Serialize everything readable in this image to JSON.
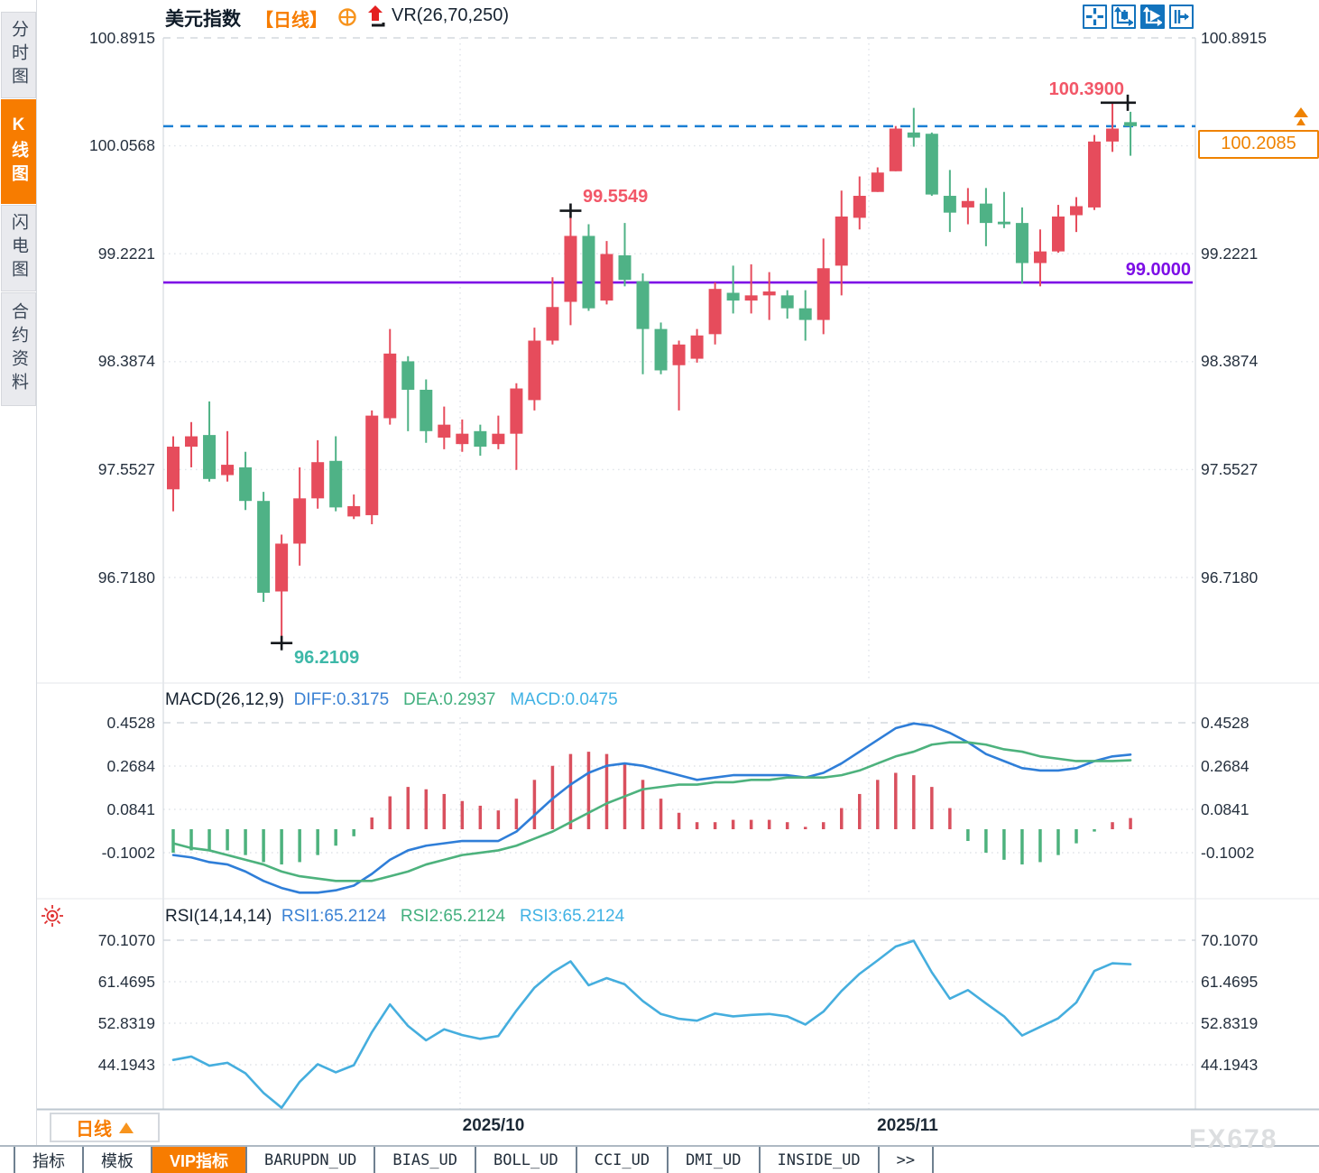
{
  "sidebar": {
    "items": [
      {
        "label": "分时图",
        "active": false
      },
      {
        "label": "K线图",
        "active": true
      },
      {
        "label": "闪电图",
        "active": false
      },
      {
        "label": "合约资料",
        "active": false
      }
    ]
  },
  "header": {
    "title": "美元指数",
    "period": "【日线】",
    "indicator": "VR(26,70,250)"
  },
  "toolbar": {
    "icons": [
      {
        "name": "crosshair-move-icon",
        "active": false
      },
      {
        "name": "axis-candle-icon",
        "active": false
      },
      {
        "name": "axis-play-icon",
        "active": true
      },
      {
        "name": "pan-right-icon",
        "active": false
      }
    ]
  },
  "main_chart": {
    "y_axis": [
      "100.8915",
      "100.0568",
      "99.2221",
      "98.3874",
      "97.5527",
      "96.7180"
    ],
    "annotations": {
      "high": "100.3900",
      "peak": "99.5549",
      "low": "96.2109",
      "support": "99.0000",
      "last_price": "100.2085"
    }
  },
  "macd_panel": {
    "title": "MACD(26,12,9)",
    "diff_label": "DIFF:0.3175",
    "dea_label": "DEA:0.2937",
    "macd_label": "MACD:0.0475",
    "y_axis": [
      "0.4528",
      "0.2684",
      "0.0841",
      "-0.1002"
    ]
  },
  "rsi_panel": {
    "title": "RSI(14,14,14)",
    "rsi1_label": "RSI1:65.2124",
    "rsi2_label": "RSI2:65.2124",
    "rsi3_label": "RSI3:65.2124",
    "y_axis": [
      "70.1070",
      "61.4695",
      "52.8319",
      "44.1943"
    ]
  },
  "x_axis": {
    "labels": [
      "2025/10",
      "2025/11"
    ]
  },
  "footer": {
    "period_label": "日线",
    "tabs": [
      {
        "label": "指标",
        "active": false
      },
      {
        "label": "模板",
        "active": false
      },
      {
        "label": "VIP指标",
        "active": true
      },
      {
        "label": "BARUPDN_UD",
        "active": false
      },
      {
        "label": "BIAS_UD",
        "active": false
      },
      {
        "label": "BOLL_UD",
        "active": false
      },
      {
        "label": "CCI_UD",
        "active": false
      },
      {
        "label": "DMI_UD",
        "active": false
      },
      {
        "label": "INSIDE_UD",
        "active": false
      },
      {
        "label": ">>",
        "active": false
      }
    ]
  },
  "watermark": "FX678",
  "colors": {
    "up": "#e64c5c",
    "down": "#4fb286",
    "diff_line": "#2f7ed8",
    "dea_line": "#4db27d",
    "hist_up": "#d9505e",
    "hist_down": "#4db27d",
    "rsi_line": "#45aede",
    "last_price_line": "#1a7fd4",
    "support_line": "#7d0ee6",
    "accent": "#f77c00"
  },
  "chart_data": {
    "type": "candlestick+macd+rsi",
    "price": {
      "y_ticks": [
        100.8915,
        100.0568,
        99.2221,
        98.3874,
        97.5527,
        96.718
      ],
      "last_price": 100.2085,
      "support_level": 99.0,
      "high_mark": 100.39,
      "peak_mark_index": 22,
      "low_mark_index": 6,
      "candles_ohlc": [
        [
          97.4,
          97.81,
          97.23,
          97.73
        ],
        [
          97.73,
          97.92,
          97.57,
          97.81
        ],
        [
          97.82,
          98.08,
          97.46,
          97.48
        ],
        [
          97.51,
          97.85,
          97.46,
          97.59
        ],
        [
          97.57,
          97.69,
          97.24,
          97.31
        ],
        [
          97.31,
          97.38,
          96.53,
          96.6
        ],
        [
          96.61,
          97.05,
          96.2109,
          96.98
        ],
        [
          96.98,
          97.57,
          96.81,
          97.33
        ],
        [
          97.33,
          97.78,
          97.25,
          97.61
        ],
        [
          97.62,
          97.81,
          97.23,
          97.26
        ],
        [
          97.19,
          97.36,
          97.17,
          97.27
        ],
        [
          97.2,
          98.01,
          97.13,
          97.97
        ],
        [
          97.95,
          98.64,
          97.9,
          98.45
        ],
        [
          98.39,
          98.43,
          97.85,
          98.17
        ],
        [
          98.17,
          98.25,
          97.76,
          97.85
        ],
        [
          97.8,
          98.04,
          97.71,
          97.9
        ],
        [
          97.75,
          97.94,
          97.69,
          97.83
        ],
        [
          97.85,
          97.9,
          97.66,
          97.73
        ],
        [
          97.75,
          97.97,
          97.71,
          97.83
        ],
        [
          97.83,
          98.22,
          97.55,
          98.18
        ],
        [
          98.09,
          98.65,
          98.01,
          98.55
        ],
        [
          98.55,
          99.04,
          98.52,
          98.81
        ],
        [
          98.85,
          99.5549,
          98.67,
          99.36
        ],
        [
          99.36,
          99.45,
          98.78,
          98.8
        ],
        [
          98.86,
          99.32,
          98.83,
          99.22
        ],
        [
          99.21,
          99.46,
          98.97,
          99.02
        ],
        [
          99.01,
          99.07,
          98.29,
          98.64
        ],
        [
          98.64,
          98.69,
          98.29,
          98.32
        ],
        [
          98.36,
          98.55,
          98.01,
          98.52
        ],
        [
          98.41,
          98.64,
          98.38,
          98.59
        ],
        [
          98.6,
          99.0,
          98.52,
          98.95
        ],
        [
          98.92,
          99.13,
          98.76,
          98.86
        ],
        [
          98.86,
          99.14,
          98.76,
          98.9
        ],
        [
          98.9,
          99.08,
          98.71,
          98.93
        ],
        [
          98.9,
          98.94,
          98.72,
          98.8
        ],
        [
          98.8,
          98.94,
          98.55,
          98.71
        ],
        [
          98.71,
          99.34,
          98.6,
          99.11
        ],
        [
          99.13,
          99.71,
          98.9,
          99.51
        ],
        [
          99.5,
          99.82,
          99.41,
          99.67
        ],
        [
          99.7,
          99.89,
          99.7,
          99.85
        ],
        [
          99.86,
          100.21,
          99.86,
          100.19
        ],
        [
          100.16,
          100.35,
          100.05,
          100.12
        ],
        [
          100.15,
          100.16,
          99.67,
          99.68
        ],
        [
          99.67,
          99.87,
          99.39,
          99.54
        ],
        [
          99.58,
          99.73,
          99.45,
          99.63
        ],
        [
          99.61,
          99.73,
          99.28,
          99.46
        ],
        [
          99.47,
          99.7,
          99.42,
          99.45
        ],
        [
          99.46,
          99.58,
          98.99,
          99.15
        ],
        [
          99.15,
          99.41,
          98.97,
          99.24
        ],
        [
          99.24,
          99.6,
          99.23,
          99.51
        ],
        [
          99.52,
          99.66,
          99.39,
          99.59
        ],
        [
          99.58,
          100.14,
          99.56,
          100.09
        ],
        [
          100.09,
          100.39,
          100.01,
          100.19
        ],
        [
          100.24,
          100.32,
          99.98,
          100.2085
        ]
      ]
    },
    "macd": {
      "y_ticks": [
        0.4528,
        0.2684,
        0.0841,
        -0.1002
      ],
      "diff": [
        -0.11,
        -0.12,
        -0.14,
        -0.15,
        -0.18,
        -0.22,
        -0.25,
        -0.27,
        -0.27,
        -0.26,
        -0.24,
        -0.19,
        -0.13,
        -0.09,
        -0.07,
        -0.06,
        -0.05,
        -0.05,
        -0.05,
        -0.01,
        0.06,
        0.13,
        0.19,
        0.24,
        0.27,
        0.28,
        0.27,
        0.25,
        0.23,
        0.21,
        0.22,
        0.23,
        0.23,
        0.23,
        0.23,
        0.22,
        0.24,
        0.28,
        0.33,
        0.38,
        0.43,
        0.45,
        0.44,
        0.41,
        0.37,
        0.32,
        0.29,
        0.26,
        0.25,
        0.25,
        0.26,
        0.29,
        0.31,
        0.3175
      ],
      "dea": [
        -0.06,
        -0.08,
        -0.09,
        -0.11,
        -0.13,
        -0.15,
        -0.18,
        -0.2,
        -0.21,
        -0.22,
        -0.22,
        -0.22,
        -0.2,
        -0.18,
        -0.15,
        -0.13,
        -0.11,
        -0.1,
        -0.09,
        -0.07,
        -0.04,
        -0.01,
        0.03,
        0.07,
        0.11,
        0.14,
        0.17,
        0.18,
        0.19,
        0.19,
        0.2,
        0.2,
        0.21,
        0.21,
        0.22,
        0.22,
        0.22,
        0.23,
        0.25,
        0.28,
        0.31,
        0.33,
        0.36,
        0.37,
        0.37,
        0.36,
        0.34,
        0.33,
        0.31,
        0.3,
        0.29,
        0.29,
        0.29,
        0.2937
      ],
      "hist": [
        -0.1,
        -0.09,
        -0.09,
        -0.09,
        -0.11,
        -0.14,
        -0.15,
        -0.14,
        -0.11,
        -0.07,
        -0.03,
        0.05,
        0.14,
        0.18,
        0.17,
        0.15,
        0.12,
        0.1,
        0.08,
        0.13,
        0.21,
        0.27,
        0.32,
        0.33,
        0.32,
        0.28,
        0.21,
        0.13,
        0.07,
        0.03,
        0.03,
        0.04,
        0.04,
        0.04,
        0.03,
        0.01,
        0.03,
        0.09,
        0.15,
        0.21,
        0.24,
        0.23,
        0.18,
        0.09,
        -0.05,
        -0.1,
        -0.13,
        -0.15,
        -0.14,
        -0.11,
        -0.06,
        -0.01,
        0.03,
        0.0475
      ]
    },
    "rsi": {
      "y_ticks": [
        70.107,
        61.4695,
        52.8319,
        44.1943
      ],
      "values": [
        45.2,
        45.9,
        44.0,
        44.6,
        42.4,
        38.3,
        35.2,
        40.6,
        44.3,
        42.6,
        44.1,
        51.0,
        56.8,
        52.3,
        49.3,
        51.6,
        50.4,
        49.6,
        50.2,
        55.5,
        60.3,
        63.5,
        65.8,
        60.8,
        62.3,
        61.0,
        57.5,
        54.8,
        53.8,
        53.4,
        54.9,
        54.3,
        54.6,
        54.8,
        54.3,
        52.6,
        55.3,
        59.6,
        63.2,
        66.0,
        68.9,
        70.1,
        63.5,
        58.0,
        59.8,
        57.0,
        54.3,
        50.3,
        52.1,
        53.9,
        57.2,
        63.8,
        65.4,
        65.2
      ]
    }
  }
}
